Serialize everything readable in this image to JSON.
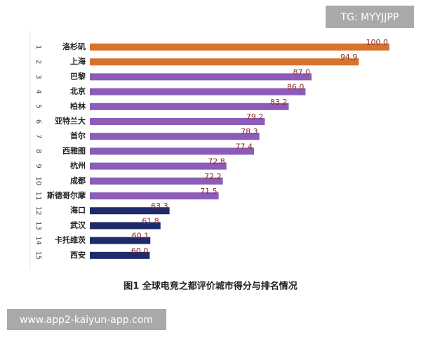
{
  "chart_data": {
    "type": "bar",
    "orientation": "horizontal",
    "caption": "图1 全球电竞之都评价城市得分与排名情况",
    "ranks": [
      1,
      2,
      3,
      4,
      5,
      6,
      7,
      8,
      9,
      10,
      11,
      12,
      13,
      14,
      15
    ],
    "categories": [
      "洛杉矶",
      "上海",
      "巴黎",
      "北京",
      "柏林",
      "亚特兰大",
      "首尔",
      "西雅图",
      "杭州",
      "成都",
      "斯德哥尔摩",
      "海口",
      "武汉",
      "卡托维茨",
      "西安"
    ],
    "values": [
      100,
      94.9,
      87,
      86,
      83.2,
      79.2,
      78.3,
      77.4,
      72.8,
      72.2,
      71.5,
      63.3,
      61.8,
      60.1,
      60
    ],
    "value_labels": [
      "100.0",
      "94.9",
      "87.0",
      "86.0",
      "83.2",
      "79.2",
      "78.3",
      "77.4",
      "72.8",
      "72.2",
      "71.5",
      "63.3",
      "61.8",
      "60.1",
      "60.0"
    ],
    "colors": [
      "#d8732c",
      "#d8732c",
      "#8b5cb8",
      "#8b5cb8",
      "#8b5cb8",
      "#8b5cb8",
      "#8b5cb8",
      "#8b5cb8",
      "#8b5cb8",
      "#8b5cb8",
      "#8b5cb8",
      "#1e2b6b",
      "#1e2b6b",
      "#1e2b6b",
      "#1e2b6b"
    ],
    "xlim": [
      50,
      100
    ]
  },
  "watermarks": {
    "top_right": "TG: MYYJJPP",
    "bottom_left": "www.app2-kaiyun-app.com"
  }
}
